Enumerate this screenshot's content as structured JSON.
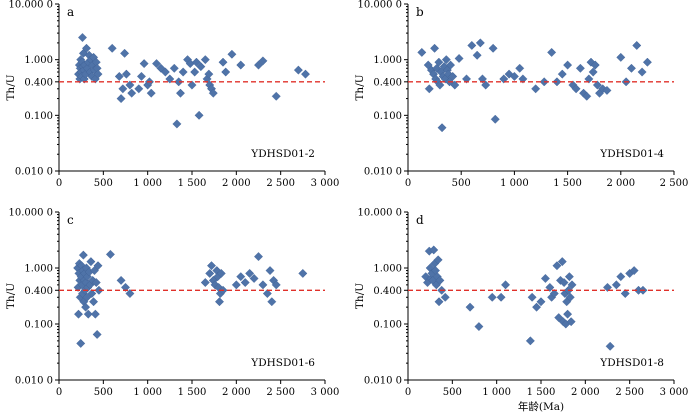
{
  "colors": {
    "marker": "#4f73a8",
    "reference_line": "#e0302a",
    "axis": "#000000"
  },
  "chart_data": [
    {
      "type": "scatter",
      "panel_label": "a",
      "sample": "YDHSD01-2",
      "xlabel": "",
      "ylabel": "Th/U",
      "ylim": [
        0.01,
        10
      ],
      "y_scale": "log",
      "xlim": [
        0,
        3000
      ],
      "xticks": [
        0,
        500,
        1000,
        1500,
        2000,
        2500,
        3000
      ],
      "xtick_labels": [
        "0",
        "500",
        "1 000",
        "1 500",
        "2 000",
        "2 500",
        "3 000"
      ],
      "ytick_labels": [
        "0.010 0",
        "0.100",
        "0.400",
        "1.000",
        "10.000 0"
      ],
      "reference_line": {
        "y": 0.4,
        "style": "dashed red"
      },
      "points": [
        [
          220,
          0.55
        ],
        [
          230,
          0.8
        ],
        [
          235,
          0.45
        ],
        [
          240,
          0.7
        ],
        [
          245,
          1.0
        ],
        [
          250,
          0.6
        ],
        [
          255,
          0.5
        ],
        [
          260,
          0.9
        ],
        [
          265,
          2.5
        ],
        [
          270,
          0.75
        ],
        [
          275,
          1.3
        ],
        [
          280,
          0.65
        ],
        [
          285,
          0.45
        ],
        [
          290,
          0.8
        ],
        [
          300,
          0.55
        ],
        [
          310,
          1.6
        ],
        [
          320,
          0.7
        ],
        [
          330,
          0.9
        ],
        [
          340,
          1.2
        ],
        [
          350,
          0.6
        ],
        [
          360,
          1.0
        ],
        [
          370,
          0.5
        ],
        [
          380,
          0.8
        ],
        [
          390,
          1.1
        ],
        [
          400,
          0.65
        ],
        [
          410,
          0.45
        ],
        [
          420,
          0.9
        ],
        [
          430,
          0.7
        ],
        [
          440,
          0.55
        ],
        [
          600,
          1.6
        ],
        [
          680,
          0.5
        ],
        [
          700,
          0.2
        ],
        [
          720,
          0.3
        ],
        [
          740,
          1.3
        ],
        [
          760,
          0.55
        ],
        [
          800,
          0.35
        ],
        [
          820,
          0.25
        ],
        [
          900,
          0.3
        ],
        [
          930,
          0.5
        ],
        [
          960,
          0.85
        ],
        [
          1000,
          0.35
        ],
        [
          1020,
          0.4
        ],
        [
          1040,
          0.25
        ],
        [
          1100,
          0.85
        ],
        [
          1150,
          0.7
        ],
        [
          1200,
          0.6
        ],
        [
          1250,
          0.45
        ],
        [
          1300,
          0.7
        ],
        [
          1330,
          0.07
        ],
        [
          1350,
          0.4
        ],
        [
          1370,
          0.25
        ],
        [
          1400,
          0.6
        ],
        [
          1450,
          1.0
        ],
        [
          1480,
          0.85
        ],
        [
          1500,
          0.35
        ],
        [
          1530,
          0.6
        ],
        [
          1550,
          0.9
        ],
        [
          1580,
          0.1
        ],
        [
          1600,
          0.75
        ],
        [
          1650,
          1.0
        ],
        [
          1670,
          0.45
        ],
        [
          1690,
          0.55
        ],
        [
          1700,
          0.35
        ],
        [
          1720,
          0.3
        ],
        [
          1740,
          0.25
        ],
        [
          1850,
          0.9
        ],
        [
          1880,
          0.6
        ],
        [
          1950,
          1.25
        ],
        [
          2050,
          0.8
        ],
        [
          2250,
          0.8
        ],
        [
          2300,
          0.95
        ],
        [
          2450,
          0.22
        ],
        [
          2700,
          0.65
        ],
        [
          2780,
          0.55
        ]
      ]
    },
    {
      "type": "scatter",
      "panel_label": "b",
      "sample": "YDHSD01-4",
      "xlabel": "",
      "ylabel": "Th/U",
      "ylim": [
        0.01,
        10
      ],
      "y_scale": "log",
      "xlim": [
        0,
        2500
      ],
      "xticks": [
        0,
        500,
        1000,
        1500,
        2000,
        2500
      ],
      "xtick_labels": [
        "0",
        "500",
        "1 000",
        "1 500",
        "2 000",
        "2 500"
      ],
      "ytick_labels": [
        "0.010 0",
        "0.100",
        "0.400",
        "1.000",
        "10.000 0"
      ],
      "reference_line": {
        "y": 0.4,
        "style": "dashed red"
      },
      "points": [
        [
          130,
          1.35
        ],
        [
          190,
          0.8
        ],
        [
          200,
          0.3
        ],
        [
          220,
          0.65
        ],
        [
          240,
          0.55
        ],
        [
          250,
          1.6
        ],
        [
          260,
          0.45
        ],
        [
          270,
          0.7
        ],
        [
          280,
          0.4
        ],
        [
          290,
          0.9
        ],
        [
          300,
          0.35
        ],
        [
          310,
          0.6
        ],
        [
          320,
          0.06
        ],
        [
          330,
          0.5
        ],
        [
          340,
          0.75
        ],
        [
          350,
          0.45
        ],
        [
          360,
          1.0
        ],
        [
          370,
          0.65
        ],
        [
          380,
          0.55
        ],
        [
          390,
          0.4
        ],
        [
          400,
          0.8
        ],
        [
          420,
          0.5
        ],
        [
          440,
          0.35
        ],
        [
          480,
          1.05
        ],
        [
          550,
          0.45
        ],
        [
          600,
          1.8
        ],
        [
          650,
          1.2
        ],
        [
          680,
          2.0
        ],
        [
          700,
          0.45
        ],
        [
          730,
          0.35
        ],
        [
          800,
          1.6
        ],
        [
          820,
          0.085
        ],
        [
          900,
          0.45
        ],
        [
          950,
          0.55
        ],
        [
          1000,
          0.5
        ],
        [
          1050,
          0.7
        ],
        [
          1080,
          0.45
        ],
        [
          1200,
          0.3
        ],
        [
          1280,
          0.4
        ],
        [
          1350,
          1.35
        ],
        [
          1400,
          0.4
        ],
        [
          1450,
          0.55
        ],
        [
          1500,
          0.8
        ],
        [
          1550,
          0.35
        ],
        [
          1580,
          0.3
        ],
        [
          1620,
          0.7
        ],
        [
          1650,
          0.25
        ],
        [
          1680,
          0.22
        ],
        [
          1700,
          0.45
        ],
        [
          1720,
          0.9
        ],
        [
          1740,
          0.6
        ],
        [
          1760,
          0.8
        ],
        [
          1780,
          0.35
        ],
        [
          1800,
          0.25
        ],
        [
          1830,
          0.3
        ],
        [
          1870,
          0.28
        ],
        [
          2000,
          1.1
        ],
        [
          2050,
          0.4
        ],
        [
          2100,
          0.7
        ],
        [
          2150,
          1.8
        ],
        [
          2200,
          0.6
        ],
        [
          2250,
          0.9
        ]
      ]
    },
    {
      "type": "scatter",
      "panel_label": "c",
      "sample": "YDHSD01-6",
      "xlabel": "",
      "ylabel": "Th/U",
      "ylim": [
        0.01,
        10
      ],
      "y_scale": "log",
      "xlim": [
        0,
        3000
      ],
      "xticks": [
        0,
        500,
        1000,
        1500,
        2000,
        2500,
        3000
      ],
      "xtick_labels": [
        "0",
        "500",
        "1 000",
        "1 500",
        "2 000",
        "2 500",
        "3 000"
      ],
      "ytick_labels": [
        "0.010 0",
        "0.100",
        "0.400",
        "1.000",
        "10.000 0"
      ],
      "reference_line": {
        "y": 0.4,
        "style": "dashed red"
      },
      "points": [
        [
          210,
          1.0
        ],
        [
          215,
          0.45
        ],
        [
          220,
          0.15
        ],
        [
          225,
          0.8
        ],
        [
          230,
          1.2
        ],
        [
          235,
          0.6
        ],
        [
          240,
          0.3
        ],
        [
          245,
          0.045
        ],
        [
          250,
          0.7
        ],
        [
          255,
          1.1
        ],
        [
          260,
          0.5
        ],
        [
          265,
          0.35
        ],
        [
          270,
          0.9
        ],
        [
          275,
          1.7
        ],
        [
          280,
          0.25
        ],
        [
          285,
          0.6
        ],
        [
          290,
          0.8
        ],
        [
          295,
          0.4
        ],
        [
          300,
          0.2
        ],
        [
          305,
          0.55
        ],
        [
          310,
          1.0
        ],
        [
          315,
          0.3
        ],
        [
          320,
          0.7
        ],
        [
          325,
          0.45
        ],
        [
          330,
          0.15
        ],
        [
          340,
          0.85
        ],
        [
          350,
          0.5
        ],
        [
          360,
          1.3
        ],
        [
          370,
          0.35
        ],
        [
          380,
          0.6
        ],
        [
          390,
          0.25
        ],
        [
          400,
          0.9
        ],
        [
          410,
          0.15
        ],
        [
          420,
          0.55
        ],
        [
          430,
          0.065
        ],
        [
          440,
          1.1
        ],
        [
          450,
          0.4
        ],
        [
          580,
          1.75
        ],
        [
          700,
          0.6
        ],
        [
          750,
          0.45
        ],
        [
          800,
          0.35
        ],
        [
          1650,
          0.55
        ],
        [
          1700,
          0.8
        ],
        [
          1720,
          1.1
        ],
        [
          1740,
          0.6
        ],
        [
          1760,
          0.5
        ],
        [
          1780,
          0.9
        ],
        [
          1790,
          0.7
        ],
        [
          1800,
          0.45
        ],
        [
          1810,
          0.25
        ],
        [
          1820,
          0.35
        ],
        [
          1830,
          0.8
        ],
        [
          1850,
          0.4
        ],
        [
          2000,
          0.5
        ],
        [
          2050,
          0.7
        ],
        [
          2100,
          0.55
        ],
        [
          2150,
          0.8
        ],
        [
          2200,
          0.65
        ],
        [
          2250,
          1.6
        ],
        [
          2300,
          0.5
        ],
        [
          2350,
          0.35
        ],
        [
          2380,
          0.9
        ],
        [
          2400,
          0.25
        ],
        [
          2420,
          0.6
        ],
        [
          2450,
          0.5
        ],
        [
          2750,
          0.8
        ]
      ]
    },
    {
      "type": "scatter",
      "panel_label": "d",
      "sample": "YDHSD01-8",
      "xlabel": "年龄(Ma)",
      "ylabel": "Th/U",
      "ylim": [
        0.01,
        10
      ],
      "y_scale": "log",
      "xlim": [
        0,
        3000
      ],
      "xticks": [
        0,
        500,
        1000,
        1500,
        2000,
        2500,
        3000
      ],
      "xtick_labels": [
        "0",
        "500",
        "1 000",
        "1 500",
        "2 000",
        "2 500",
        "3 000"
      ],
      "ytick_labels": [
        "0.010 0",
        "0.100",
        "0.400",
        "1.000",
        "10.000 0"
      ],
      "reference_line": {
        "y": 0.4,
        "style": "dashed red"
      },
      "points": [
        [
          200,
          0.7
        ],
        [
          220,
          0.55
        ],
        [
          240,
          2.0
        ],
        [
          250,
          1.0
        ],
        [
          260,
          0.65
        ],
        [
          270,
          0.8
        ],
        [
          280,
          0.6
        ],
        [
          290,
          2.1
        ],
        [
          300,
          1.2
        ],
        [
          310,
          0.9
        ],
        [
          320,
          0.5
        ],
        [
          330,
          0.7
        ],
        [
          340,
          1.4
        ],
        [
          350,
          0.25
        ],
        [
          360,
          0.6
        ],
        [
          380,
          0.4
        ],
        [
          420,
          0.3
        ],
        [
          700,
          0.2
        ],
        [
          800,
          0.09
        ],
        [
          950,
          0.3
        ],
        [
          1050,
          0.3
        ],
        [
          1100,
          0.5
        ],
        [
          1380,
          0.05
        ],
        [
          1400,
          0.3
        ],
        [
          1450,
          0.2
        ],
        [
          1500,
          0.25
        ],
        [
          1550,
          0.65
        ],
        [
          1600,
          0.45
        ],
        [
          1620,
          0.3
        ],
        [
          1650,
          0.35
        ],
        [
          1680,
          1.1
        ],
        [
          1700,
          0.13
        ],
        [
          1720,
          0.6
        ],
        [
          1740,
          1.3
        ],
        [
          1750,
          0.11
        ],
        [
          1760,
          0.55
        ],
        [
          1770,
          0.35
        ],
        [
          1780,
          0.1
        ],
        [
          1790,
          0.25
        ],
        [
          1800,
          0.15
        ],
        [
          1810,
          0.4
        ],
        [
          1820,
          0.7
        ],
        [
          1830,
          0.3
        ],
        [
          1840,
          0.11
        ],
        [
          1850,
          0.5
        ],
        [
          2250,
          0.45
        ],
        [
          2280,
          0.04
        ],
        [
          2350,
          0.5
        ],
        [
          2400,
          0.7
        ],
        [
          2450,
          0.35
        ],
        [
          2500,
          0.8
        ],
        [
          2550,
          0.9
        ],
        [
          2600,
          0.4
        ],
        [
          2650,
          0.4
        ]
      ]
    }
  ]
}
